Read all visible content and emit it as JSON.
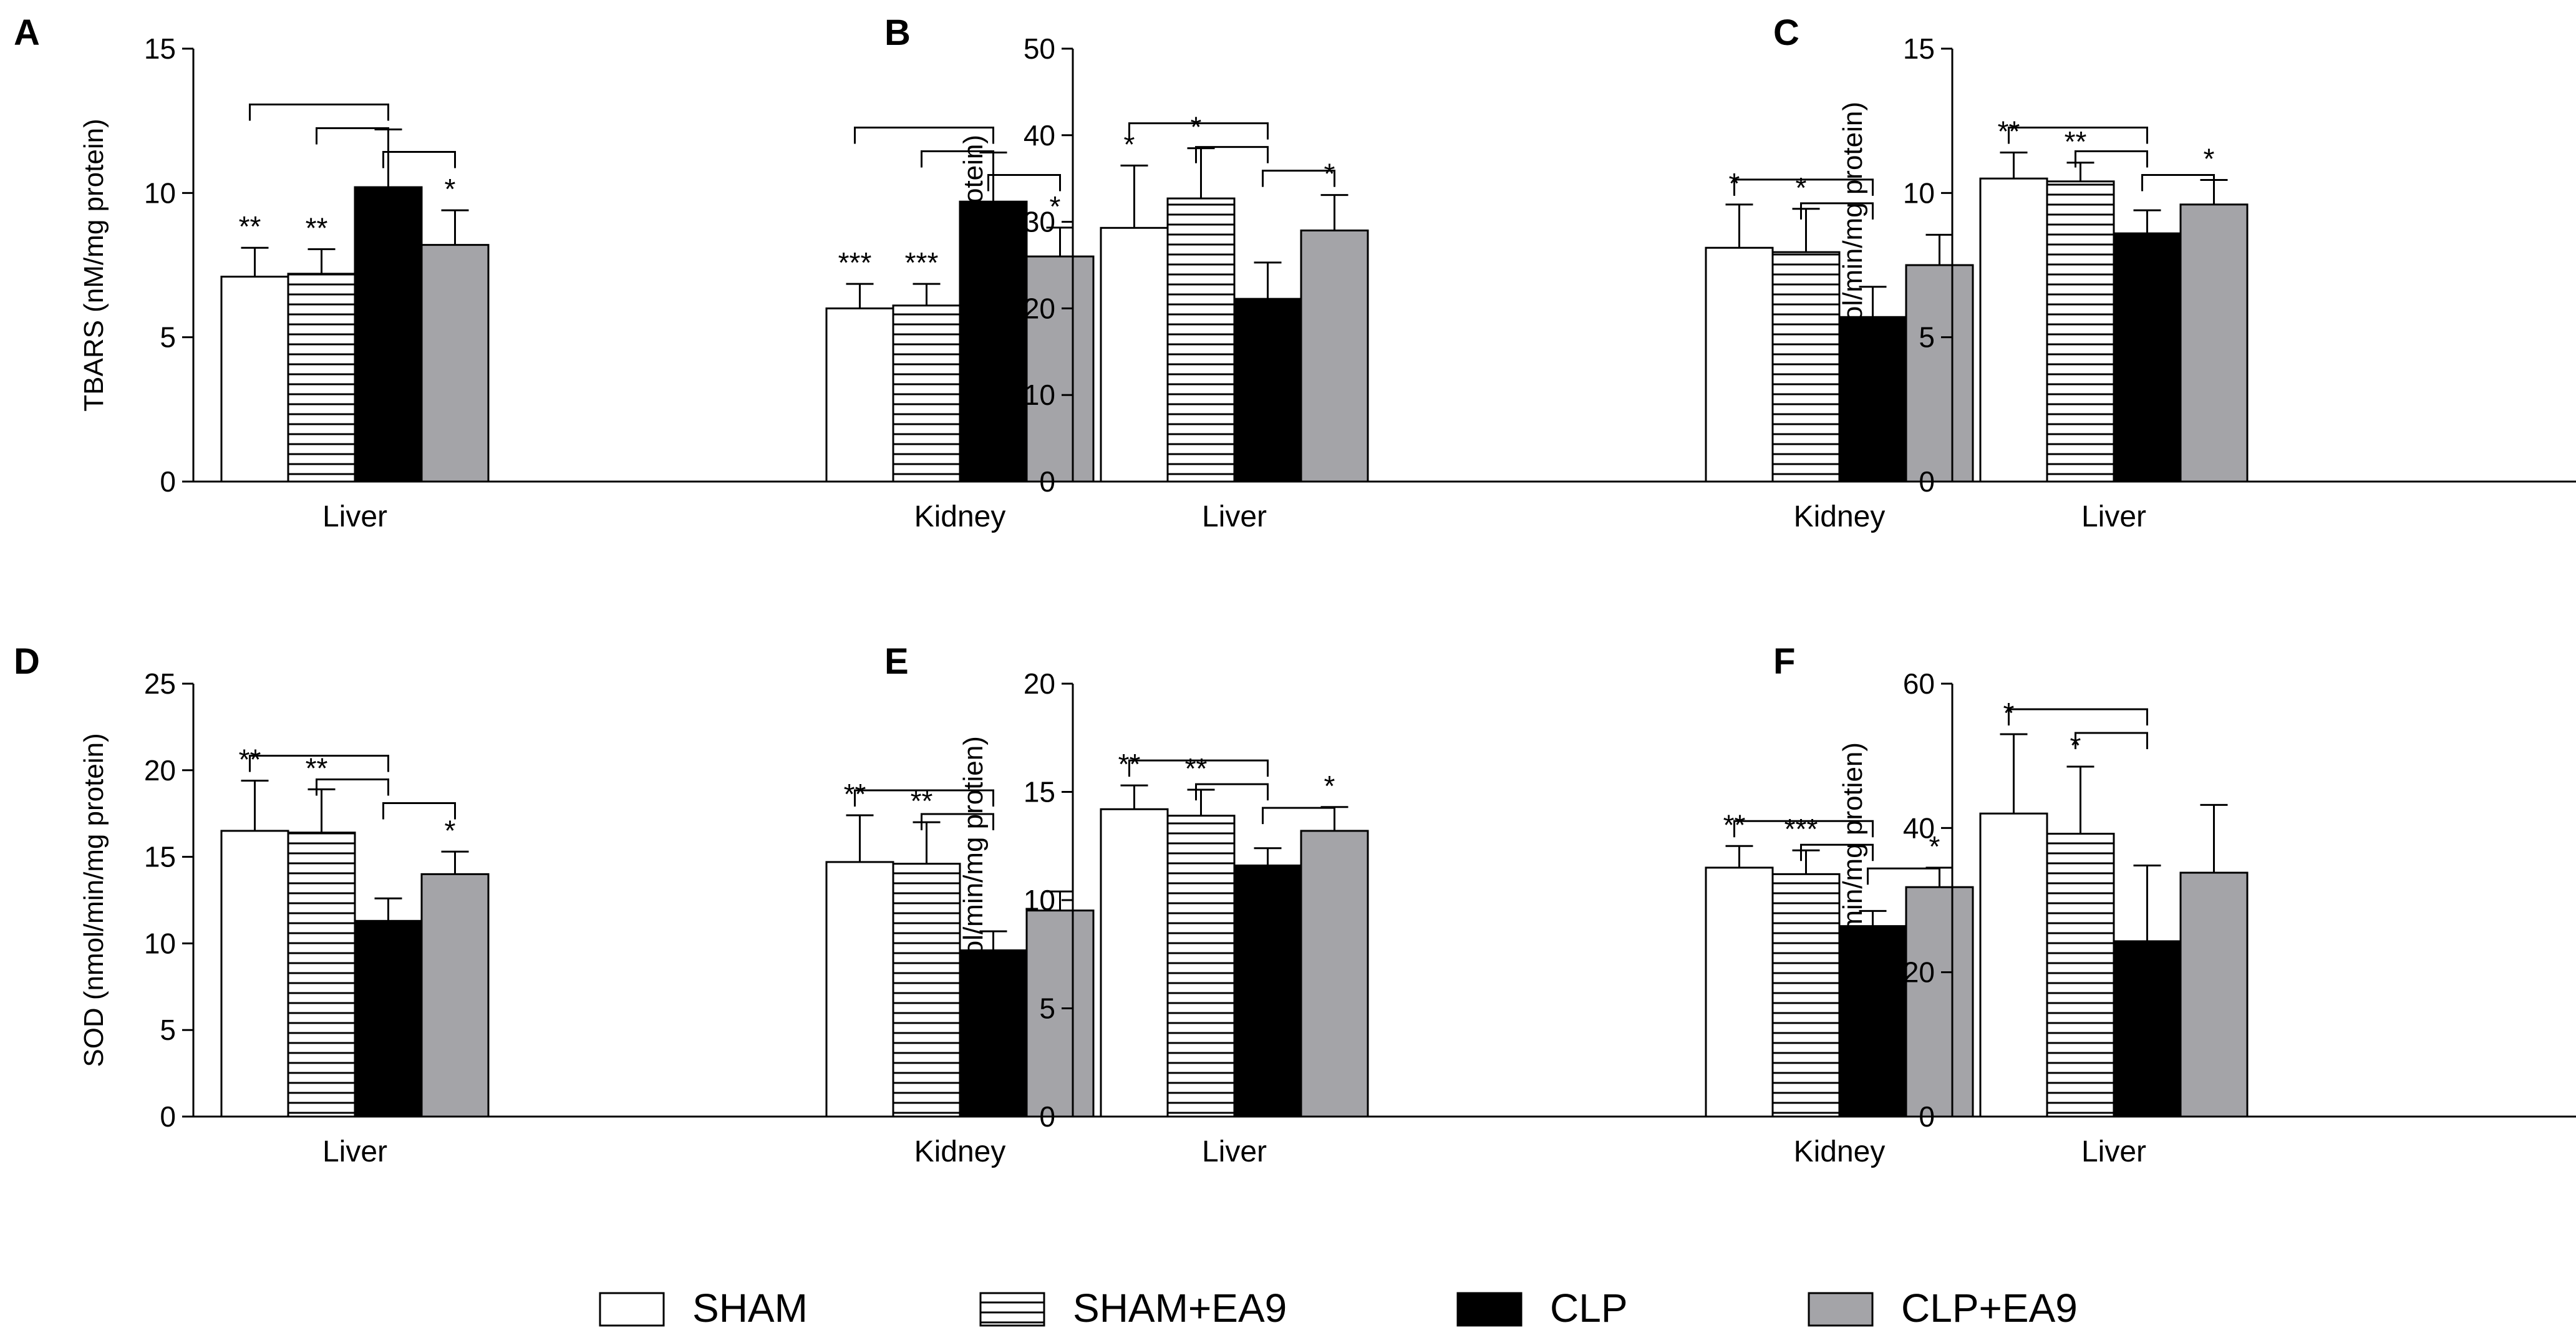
{
  "legend": {
    "items": [
      {
        "label": "SHAM",
        "pattern": "white"
      },
      {
        "label": "SHAM+EA9",
        "pattern": "stripes"
      },
      {
        "label": "CLP",
        "pattern": "black"
      },
      {
        "label": "CLP+EA9",
        "pattern": "gray"
      }
    ]
  },
  "colors": {
    "gray_fill": "#a4a4a8",
    "black_fill": "#000000",
    "white_fill": "#ffffff",
    "axis": "#000000"
  },
  "chart_data": [
    {
      "panel": "A",
      "type": "bar",
      "ylabel": "TBARS (nM/mg protein)",
      "ylim": [
        0,
        15
      ],
      "yticks": [
        0,
        5,
        10,
        15
      ],
      "categories": [
        "Liver",
        "Kidney"
      ],
      "series": [
        {
          "name": "SHAM",
          "values": [
            7.1,
            6.0
          ],
          "errors": [
            1.0,
            0.85
          ]
        },
        {
          "name": "SHAM+EA9",
          "values": [
            7.2,
            6.1
          ],
          "errors": [
            0.85,
            0.75
          ]
        },
        {
          "name": "CLP",
          "values": [
            10.2,
            9.7
          ],
          "errors": [
            2.0,
            1.7
          ]
        },
        {
          "name": "CLP+EA9",
          "values": [
            8.2,
            7.8
          ],
          "errors": [
            1.2,
            1.0
          ]
        }
      ],
      "significance": [
        [
          "**",
          "**",
          "",
          "*"
        ],
        [
          "***",
          "***",
          "",
          "*"
        ]
      ],
      "brackets": [
        {
          "group": 0,
          "from": 0,
          "to": 2,
          "level": 0
        },
        {
          "group": 0,
          "from": 1,
          "to": 2,
          "level": 1
        },
        {
          "group": 0,
          "from": 2,
          "to": 3,
          "level": 2
        },
        {
          "group": 1,
          "from": 0,
          "to": 2,
          "level": 0
        },
        {
          "group": 1,
          "from": 1,
          "to": 2,
          "level": 1
        },
        {
          "group": 1,
          "from": 2,
          "to": 3,
          "level": 2
        }
      ]
    },
    {
      "panel": "B",
      "type": "bar",
      "ylabel": "GSH (nM/mg protein)",
      "ylim": [
        0,
        50
      ],
      "yticks": [
        0,
        10,
        20,
        30,
        40,
        50
      ],
      "categories": [
        "Liver",
        "Kidney"
      ],
      "series": [
        {
          "name": "SHAM",
          "values": [
            29.3,
            27.0
          ],
          "errors": [
            7.2,
            5.0
          ]
        },
        {
          "name": "SHAM+EA9",
          "values": [
            32.7,
            26.5
          ],
          "errors": [
            5.8,
            5.0
          ]
        },
        {
          "name": "CLP",
          "values": [
            21.1,
            19.0
          ],
          "errors": [
            4.2,
            3.5
          ]
        },
        {
          "name": "CLP+EA9",
          "values": [
            29.0,
            25.0
          ],
          "errors": [
            4.1,
            3.5
          ]
        }
      ],
      "significance": [
        [
          "*",
          "*",
          "",
          "*"
        ],
        [
          "*",
          "*",
          "",
          ""
        ]
      ],
      "brackets": [
        {
          "group": 0,
          "from": 0,
          "to": 2,
          "level": 0
        },
        {
          "group": 0,
          "from": 1,
          "to": 2,
          "level": 1
        },
        {
          "group": 0,
          "from": 2,
          "to": 3,
          "level": 2
        },
        {
          "group": 1,
          "from": 0,
          "to": 2,
          "level": 0
        },
        {
          "group": 1,
          "from": 1,
          "to": 2,
          "level": 1
        }
      ]
    },
    {
      "panel": "C",
      "type": "bar",
      "ylabel": "CAT (nmol/min/mg protein)",
      "ylim": [
        0,
        15
      ],
      "yticks": [
        0,
        5,
        10,
        15
      ],
      "categories": [
        "Liver",
        "Kidney"
      ],
      "series": [
        {
          "name": "SHAM",
          "values": [
            10.5,
            9.0
          ],
          "errors": [
            0.9,
            1.8
          ]
        },
        {
          "name": "SHAM+EA9",
          "values": [
            10.4,
            8.2
          ],
          "errors": [
            0.65,
            0.8
          ]
        },
        {
          "name": "CLP",
          "values": [
            8.6,
            5.3
          ],
          "errors": [
            0.8,
            1.6
          ]
        },
        {
          "name": "CLP+EA9",
          "values": [
            9.6,
            8.0
          ],
          "errors": [
            0.85,
            1.7
          ]
        }
      ],
      "significance": [
        [
          "**",
          "**",
          "",
          "*"
        ],
        [
          "*",
          "*",
          "",
          "*"
        ]
      ],
      "brackets": [
        {
          "group": 0,
          "from": 0,
          "to": 2,
          "level": 0
        },
        {
          "group": 0,
          "from": 1,
          "to": 2,
          "level": 1
        },
        {
          "group": 0,
          "from": 2,
          "to": 3,
          "level": 2
        },
        {
          "group": 1,
          "from": 0,
          "to": 2,
          "level": 0
        },
        {
          "group": 1,
          "from": 1,
          "to": 2,
          "level": 1
        },
        {
          "group": 1,
          "from": 2,
          "to": 3,
          "level": 2
        }
      ]
    },
    {
      "panel": "D",
      "type": "bar",
      "ylabel": "SOD (nmol/min/mg protein)",
      "ylim": [
        0,
        25
      ],
      "yticks": [
        0,
        5,
        10,
        15,
        20,
        25
      ],
      "categories": [
        "Liver",
        "Kidney"
      ],
      "series": [
        {
          "name": "SHAM",
          "values": [
            16.5,
            14.7
          ],
          "errors": [
            2.9,
            2.7
          ]
        },
        {
          "name": "SHAM+EA9",
          "values": [
            16.4,
            14.6
          ],
          "errors": [
            2.5,
            2.4
          ]
        },
        {
          "name": "CLP",
          "values": [
            11.3,
            9.6
          ],
          "errors": [
            1.3,
            1.1
          ]
        },
        {
          "name": "CLP+EA9",
          "values": [
            14.0,
            11.9
          ],
          "errors": [
            1.3,
            1.1
          ]
        }
      ],
      "significance": [
        [
          "**",
          "**",
          "",
          "*"
        ],
        [
          "**",
          "**",
          "",
          ""
        ]
      ],
      "brackets": [
        {
          "group": 0,
          "from": 0,
          "to": 2,
          "level": 0
        },
        {
          "group": 0,
          "from": 1,
          "to": 2,
          "level": 1
        },
        {
          "group": 0,
          "from": 2,
          "to": 3,
          "level": 2
        },
        {
          "group": 1,
          "from": 0,
          "to": 2,
          "level": 0
        },
        {
          "group": 1,
          "from": 1,
          "to": 2,
          "level": 1
        }
      ]
    },
    {
      "panel": "E",
      "type": "bar",
      "ylabel": "GPx (nmol/min/mg protien)",
      "ylim": [
        0,
        20
      ],
      "yticks": [
        0,
        5,
        10,
        15,
        20
      ],
      "categories": [
        "Liver",
        "Kidney"
      ],
      "series": [
        {
          "name": "SHAM",
          "values": [
            14.2,
            11.5
          ],
          "errors": [
            1.1,
            1.0
          ]
        },
        {
          "name": "SHAM+EA9",
          "values": [
            13.9,
            11.2
          ],
          "errors": [
            1.2,
            1.1
          ]
        },
        {
          "name": "CLP",
          "values": [
            11.6,
            8.8
          ],
          "errors": [
            0.8,
            0.7
          ]
        },
        {
          "name": "CLP+EA9",
          "values": [
            13.2,
            10.6
          ],
          "errors": [
            1.1,
            0.9
          ]
        }
      ],
      "significance": [
        [
          "**",
          "**",
          "",
          "*"
        ],
        [
          "**",
          "***",
          "",
          "*"
        ]
      ],
      "brackets": [
        {
          "group": 0,
          "from": 0,
          "to": 2,
          "level": 0
        },
        {
          "group": 0,
          "from": 1,
          "to": 2,
          "level": 1
        },
        {
          "group": 0,
          "from": 2,
          "to": 3,
          "level": 2
        },
        {
          "group": 1,
          "from": 0,
          "to": 2,
          "level": 0
        },
        {
          "group": 1,
          "from": 1,
          "to": 2,
          "level": 1
        },
        {
          "group": 1,
          "from": 2,
          "to": 3,
          "level": 2
        }
      ]
    },
    {
      "panel": "F",
      "type": "bar",
      "ylabel": "GR (nmol/min/mg protien)",
      "ylim": [
        0,
        60
      ],
      "yticks": [
        0,
        20,
        40,
        60
      ],
      "categories": [
        "Liver",
        "Kidney"
      ],
      "series": [
        {
          "name": "SHAM",
          "values": [
            42.0,
            40.0
          ],
          "errors": [
            11.0,
            10.3
          ]
        },
        {
          "name": "SHAM+EA9",
          "values": [
            39.2,
            37.3
          ],
          "errors": [
            9.3,
            8.7
          ]
        },
        {
          "name": "CLP",
          "values": [
            24.3,
            20.7
          ],
          "errors": [
            10.5,
            9.0
          ]
        },
        {
          "name": "CLP+EA9",
          "values": [
            33.8,
            28.7
          ],
          "errors": [
            9.4,
            8.0
          ]
        }
      ],
      "significance": [
        [
          "*",
          "*",
          "",
          ""
        ],
        [
          "*",
          "**",
          "",
          ""
        ]
      ],
      "brackets": [
        {
          "group": 0,
          "from": 0,
          "to": 2,
          "level": 0
        },
        {
          "group": 0,
          "from": 1,
          "to": 2,
          "level": 1
        },
        {
          "group": 1,
          "from": 0,
          "to": 2,
          "level": 0
        },
        {
          "group": 1,
          "from": 1,
          "to": 2,
          "level": 1
        }
      ]
    }
  ]
}
